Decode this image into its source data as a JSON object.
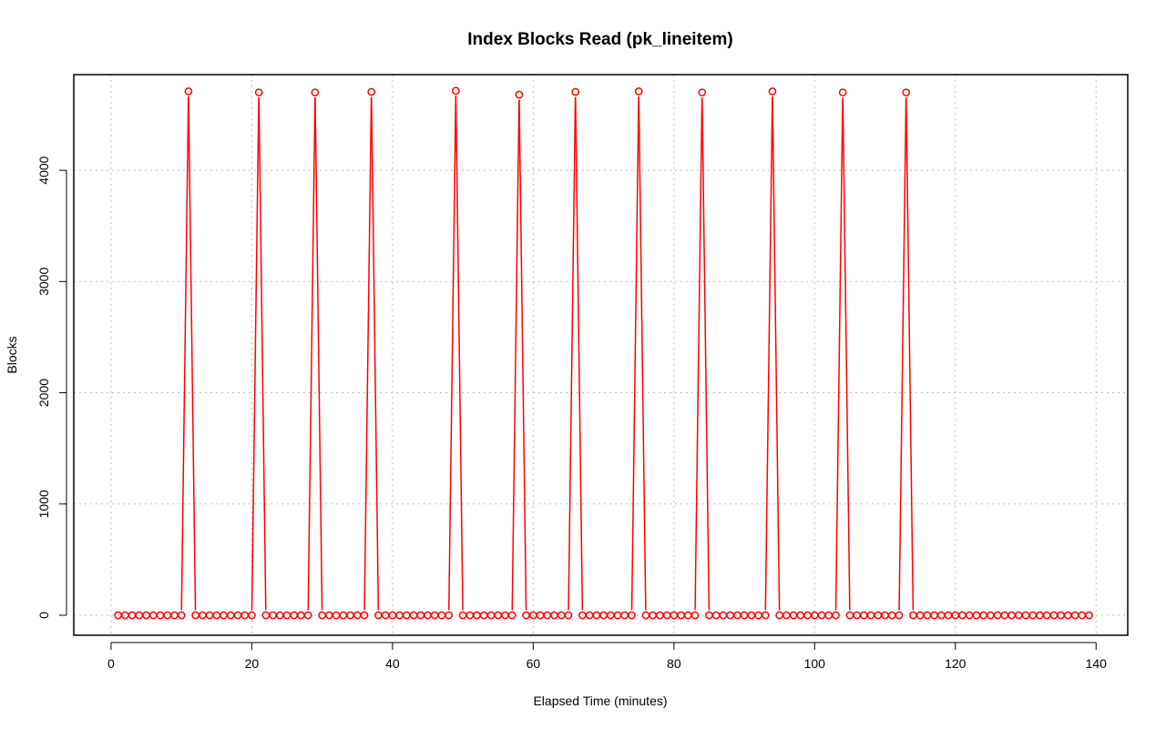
{
  "chart_data": {
    "type": "line",
    "title": "Index Blocks Read (pk_lineitem)",
    "xlabel": "Elapsed Time (minutes)",
    "ylabel": "Blocks",
    "xlim": [
      -5.3,
      144.5
    ],
    "ylim": [
      -180,
      4860
    ],
    "xticks": [
      0,
      20,
      40,
      60,
      80,
      100,
      120,
      140
    ],
    "yticks": [
      0,
      1000,
      2000,
      3000,
      4000
    ],
    "grid": true,
    "legend": "none",
    "line_color": "#ff0000",
    "series": [
      {
        "x_start": 1,
        "x_end": 139,
        "baseline": 0,
        "peaks": [
          {
            "x": 11,
            "y": 4710
          },
          {
            "x": 21,
            "y": 4700
          },
          {
            "x": 29,
            "y": 4700
          },
          {
            "x": 37,
            "y": 4705
          },
          {
            "x": 49,
            "y": 4715
          },
          {
            "x": 58,
            "y": 4680
          },
          {
            "x": 66,
            "y": 4705
          },
          {
            "x": 75,
            "y": 4710
          },
          {
            "x": 84,
            "y": 4700
          },
          {
            "x": 94,
            "y": 4710
          },
          {
            "x": 104,
            "y": 4700
          },
          {
            "x": 113,
            "y": 4700
          }
        ]
      }
    ]
  }
}
